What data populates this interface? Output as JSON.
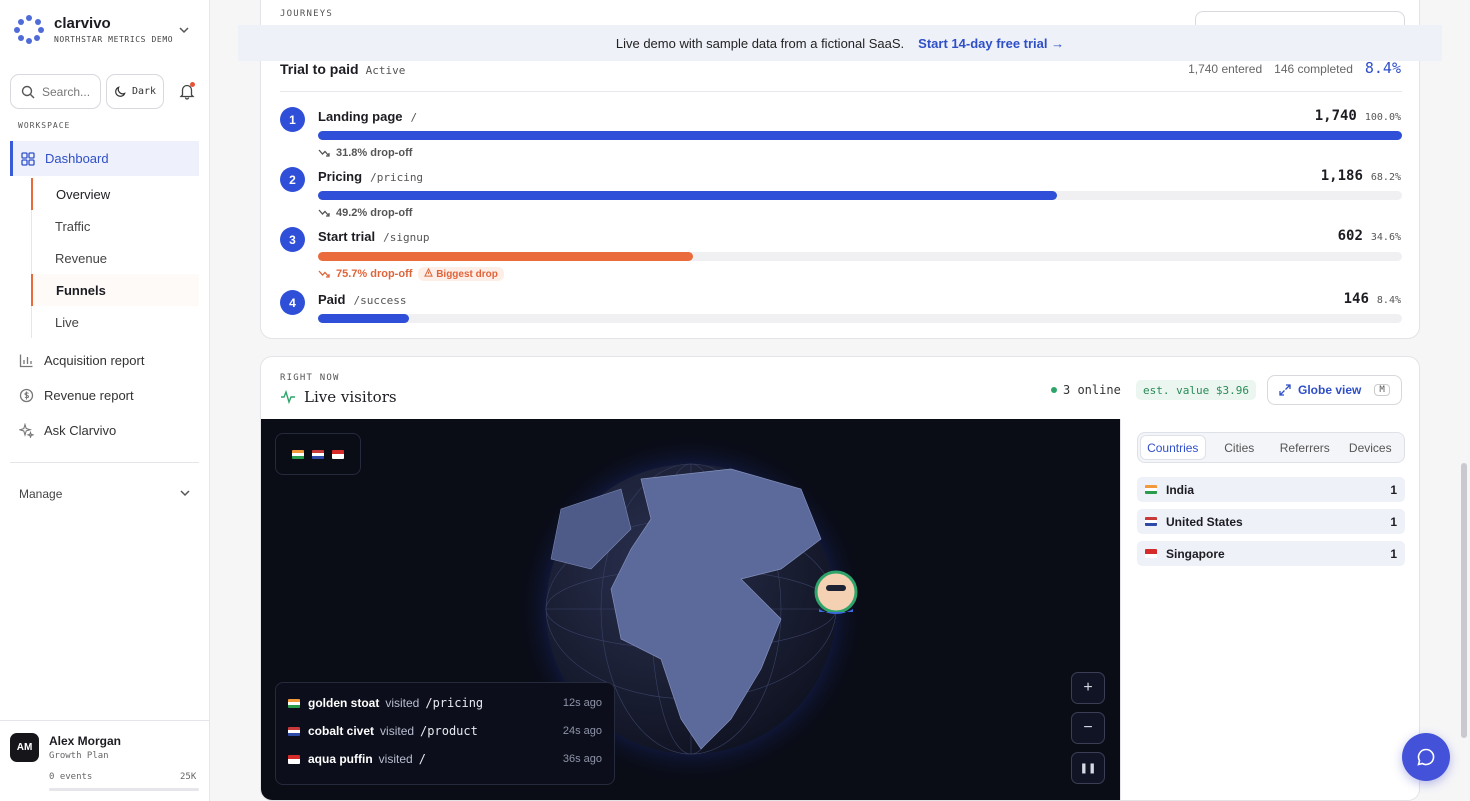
{
  "brand": {
    "name": "clarvivo",
    "subtitle": "NORTHSTAR METRICS DEMO"
  },
  "search": {
    "placeholder": "Search..."
  },
  "theme_toggle": {
    "label": "Dark"
  },
  "sidebar": {
    "workspace_label": "WORKSPACE",
    "dashboard": {
      "label": "Dashboard"
    },
    "sub_items": [
      {
        "label": "Overview"
      },
      {
        "label": "Traffic"
      },
      {
        "label": "Revenue"
      },
      {
        "label": "Funnels"
      },
      {
        "label": "Live"
      }
    ],
    "items": [
      {
        "label": "Acquisition report",
        "icon": "bar-chart-icon"
      },
      {
        "label": "Revenue report",
        "icon": "dollar-circle-icon"
      },
      {
        "label": "Ask Clarvivo",
        "icon": "sparkle-icon"
      }
    ],
    "manage": {
      "label": "Manage"
    }
  },
  "user": {
    "initials": "AM",
    "name": "Alex Morgan",
    "plan": "Growth Plan",
    "events": "0 events",
    "limit": "25K",
    "usage_fraction": 0
  },
  "banner": {
    "text": "Live demo with sample data from a fictional SaaS.",
    "cta": "Start 14-day free trial →"
  },
  "funnel": {
    "section_label": "JOURNEYS",
    "title": "Trial to paid",
    "status": "Active",
    "entered": "1,740 entered",
    "completed": "146 completed",
    "rate": "8.4%",
    "steps": [
      {
        "num": "1",
        "name": "Landing page",
        "path": "/",
        "value": "1,740",
        "pct": "100.0%",
        "fraction": 1.0,
        "color": "#2f4fd8"
      },
      {
        "num": "2",
        "name": "Pricing",
        "path": "/pricing",
        "value": "1,186",
        "pct": "68.2%",
        "fraction": 0.682,
        "color": "#2f4fd8"
      },
      {
        "num": "3",
        "name": "Start trial",
        "path": "/signup",
        "value": "602",
        "pct": "34.6%",
        "fraction": 0.346,
        "color": "#ea6b3c"
      },
      {
        "num": "4",
        "name": "Paid",
        "path": "/success",
        "value": "146",
        "pct": "8.4%",
        "fraction": 0.084,
        "color": "#2f4fd8"
      }
    ],
    "dropoffs": [
      {
        "text": "31.8% drop-off"
      },
      {
        "text": "49.2% drop-off"
      },
      {
        "text": "75.7% drop-off",
        "badge": "Biggest drop"
      }
    ]
  },
  "live": {
    "section_label": "RIGHT NOW",
    "title": "Live visitors",
    "online": "3 online",
    "est_value": "est. value $3.96",
    "globe_button": "Globe view",
    "globe_shortcut": "M",
    "visits": [
      {
        "flag": "IN",
        "name": "golden stoat",
        "verb": "visited",
        "path": "/pricing",
        "ago": "12s ago"
      },
      {
        "flag": "US",
        "name": "cobalt civet",
        "verb": "visited",
        "path": "/product",
        "ago": "24s ago"
      },
      {
        "flag": "SG",
        "name": "aqua puffin",
        "verb": "visited",
        "path": "/",
        "ago": "36s ago"
      }
    ],
    "map_controls": {
      "zoom_in": "+",
      "zoom_out": "−",
      "pause": "❚❚"
    },
    "tabs": [
      {
        "label": "Countries"
      },
      {
        "label": "Cities"
      },
      {
        "label": "Referrers"
      },
      {
        "label": "Devices"
      }
    ],
    "countries": [
      {
        "flag": "IN",
        "name": "India",
        "count": "1"
      },
      {
        "flag": "US",
        "name": "United States",
        "count": "1"
      },
      {
        "flag": "SG",
        "name": "Singapore",
        "count": "1"
      }
    ]
  },
  "colors": {
    "accent": "#2f4fd8",
    "orange": "#ea6b3c",
    "online": "#2fa46a"
  }
}
